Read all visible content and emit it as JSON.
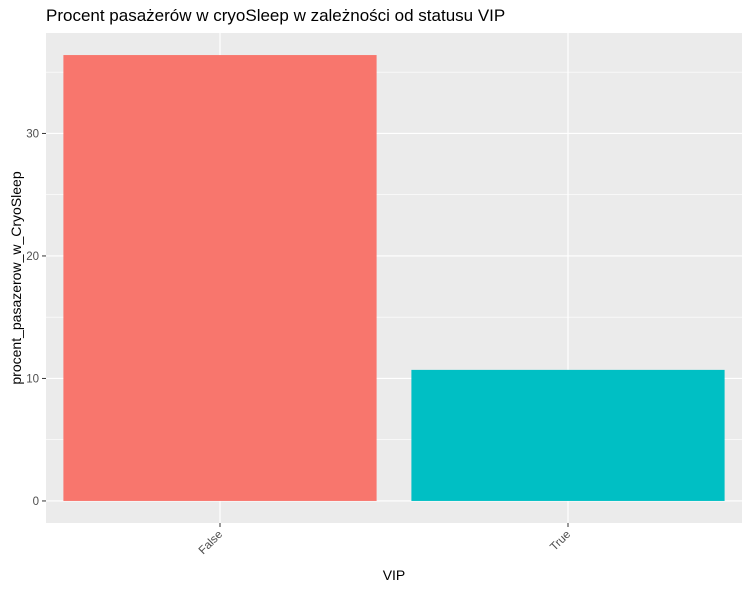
{
  "chart_data": {
    "type": "bar",
    "title": "Procent pasażerów w cryoSleep w zależności od statusu VIP",
    "xlabel": "VIP",
    "ylabel": "procent_pasazerow_w_CryoSleep",
    "categories": [
      "False",
      "True"
    ],
    "values": [
      36.4,
      10.7
    ],
    "colors": [
      "#F8766D",
      "#00BFC4"
    ],
    "yticks": [
      0,
      10,
      20,
      30
    ],
    "ylim": [
      -1.8,
      38.2
    ],
    "grid": true,
    "legend": "none",
    "x_tick_rotation": "45 degrees"
  },
  "style": {
    "panel_background": "#EBEBEB",
    "grid_color": "#FFFFFF",
    "tick_color": "#333333"
  }
}
